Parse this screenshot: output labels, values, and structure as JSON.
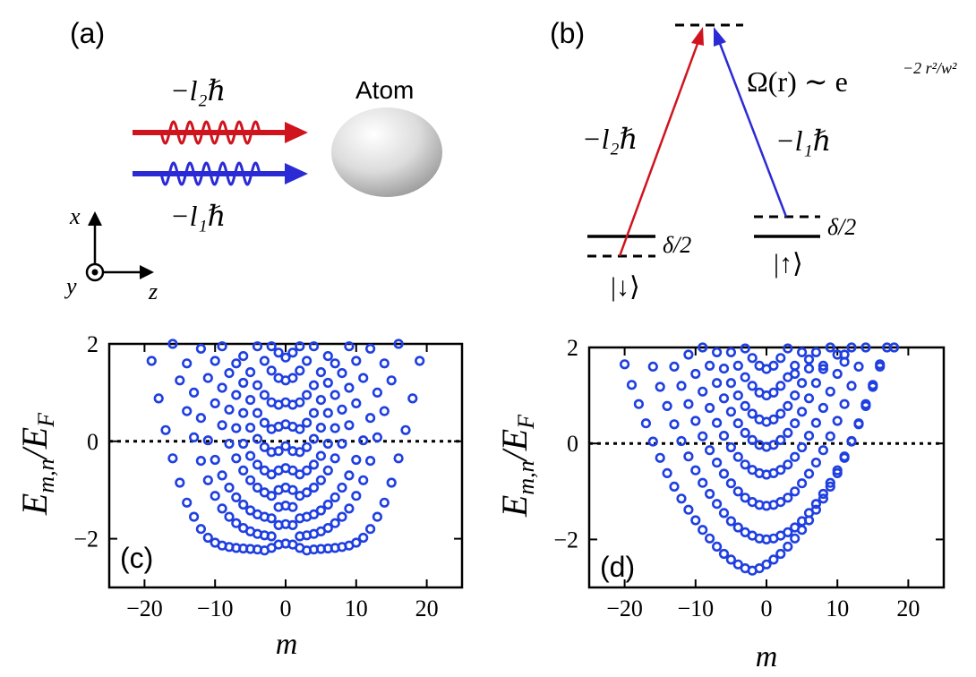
{
  "panel_a": {
    "label": "(a)",
    "atom_label": "Atom",
    "beam_top_label": "−l₂ℏ",
    "beam_bottom_label": "−l₁ℏ",
    "beam_top_color": "#d0141e",
    "beam_bottom_color": "#2b2bd6",
    "axes": {
      "x": "x",
      "y": "y",
      "z": "z"
    }
  },
  "panel_b": {
    "label": "(b)",
    "rabi_label": "Ω(r) ∼ e",
    "rabi_exponent": "−2 r²/w²",
    "left_arrow_label": "−l₂ℏ",
    "right_arrow_label": "−l₁ℏ",
    "left_detuning": "δ/2",
    "right_detuning": "δ/2",
    "state_down": "|↓⟩",
    "state_up": "|↑⟩",
    "left_arrow_color": "#d0141e",
    "right_arrow_color": "#2b2bd6"
  },
  "chart_data": [
    {
      "type": "scatter",
      "panel_label": "(c)",
      "xlabel": "m",
      "ylabel": "E_{m,n}/E_F",
      "xlim": [
        -25,
        25
      ],
      "ylim": [
        -3,
        2
      ],
      "xticks": [
        -20,
        -10,
        0,
        10,
        20
      ],
      "yticks": [
        -2,
        0,
        2
      ],
      "xtick_labels": [
        "−20",
        "−10",
        "0",
        "10",
        "20"
      ],
      "ytick_labels": [
        "−2",
        "0",
        "2"
      ],
      "fermi_level": 0,
      "marker_color": "#1f3fe0",
      "rows": [
        {
          "xs": [
            -19,
            -18,
            -17,
            -16,
            -15,
            -14,
            -13,
            -12,
            -11,
            -10,
            -9,
            -8,
            -7,
            -6,
            -5,
            -4,
            -3,
            -2,
            -1,
            0,
            1,
            2,
            3,
            4,
            5,
            6,
            7,
            8,
            9,
            10,
            11,
            12,
            13,
            14,
            15,
            16,
            17,
            18,
            19
          ],
          "ys": [
            1.65,
            0.88,
            0.23,
            -0.35,
            -0.85,
            -1.26,
            -1.55,
            -1.8,
            -1.98,
            -2.08,
            -2.14,
            -2.17,
            -2.19,
            -2.2,
            -2.21,
            -2.22,
            -2.24,
            -2.19,
            -2.12,
            -2.1,
            -2.12,
            -2.19,
            -2.24,
            -2.22,
            -2.21,
            -2.2,
            -2.19,
            -2.17,
            -2.14,
            -2.08,
            -1.98,
            -1.8,
            -1.55,
            -1.26,
            -0.85,
            -0.35,
            0.23,
            0.88,
            1.65
          ]
        },
        {
          "xs": [
            -16,
            -15,
            -14,
            -13,
            -12,
            -11,
            -10,
            -9,
            -8,
            -7,
            -6,
            -5,
            -4,
            -3,
            -2,
            -1,
            0,
            1,
            2,
            3,
            4,
            5,
            6,
            7,
            8,
            9,
            10,
            11,
            12,
            13,
            14,
            15,
            16
          ],
          "ys": [
            2.0,
            1.25,
            0.62,
            0.08,
            -0.4,
            -0.8,
            -1.12,
            -1.38,
            -1.55,
            -1.68,
            -1.78,
            -1.85,
            -1.9,
            -1.93,
            -1.95,
            -1.72,
            -1.7,
            -1.72,
            -1.95,
            -1.93,
            -1.9,
            -1.85,
            -1.78,
            -1.68,
            -1.55,
            -1.38,
            -1.12,
            -0.8,
            -0.4,
            0.08,
            0.62,
            1.25,
            2.0
          ]
        },
        {
          "xs": [
            -14,
            -13,
            -12,
            -11,
            -10,
            -9,
            -8,
            -7,
            -6,
            -5,
            -4,
            -3,
            -2,
            -1,
            0,
            1,
            2,
            3,
            4,
            5,
            6,
            7,
            8,
            9,
            10,
            11,
            12,
            13,
            14
          ],
          "ys": [
            1.6,
            1.0,
            0.48,
            0.02,
            -0.38,
            -0.7,
            -0.95,
            -1.15,
            -1.3,
            -1.42,
            -1.5,
            -1.55,
            -1.58,
            -1.35,
            -1.32,
            -1.35,
            -1.58,
            -1.55,
            -1.5,
            -1.42,
            -1.3,
            -1.15,
            -0.95,
            -0.7,
            -0.38,
            0.02,
            0.48,
            1.0,
            1.6
          ]
        },
        {
          "xs": [
            -12,
            -11,
            -10,
            -9,
            -8,
            -7,
            -6,
            -5,
            -4,
            -3,
            -2,
            -1,
            0,
            1,
            2,
            3,
            4,
            5,
            6,
            7,
            8,
            9,
            10,
            11,
            12
          ],
          "ys": [
            1.9,
            1.3,
            0.78,
            0.33,
            -0.05,
            -0.35,
            -0.6,
            -0.8,
            -0.95,
            -1.05,
            -1.12,
            -1.0,
            -0.95,
            -1.0,
            -1.12,
            -1.05,
            -0.95,
            -0.8,
            -0.6,
            -0.35,
            -0.05,
            0.33,
            0.78,
            1.3,
            1.9
          ]
        },
        {
          "xs": [
            -10,
            -9,
            -8,
            -7,
            -6,
            -5,
            -4,
            -3,
            -2,
            -1,
            0,
            1,
            2,
            3,
            4,
            5,
            6,
            7,
            8,
            9,
            10
          ],
          "ys": [
            1.65,
            1.1,
            0.65,
            0.27,
            -0.05,
            -0.3,
            -0.48,
            -0.6,
            -0.68,
            -0.6,
            -0.55,
            -0.6,
            -0.68,
            -0.6,
            -0.48,
            -0.3,
            -0.05,
            0.27,
            0.65,
            1.1,
            1.65
          ]
        },
        {
          "xs": [
            -9,
            -8,
            -7,
            -6,
            -5,
            -4,
            -3,
            -2,
            -1,
            0,
            1,
            2,
            3,
            4,
            5,
            6,
            7,
            8,
            9
          ],
          "ys": [
            1.95,
            1.4,
            0.95,
            0.58,
            0.28,
            0.05,
            -0.12,
            -0.22,
            -0.2,
            -0.1,
            -0.2,
            -0.22,
            -0.12,
            0.05,
            0.28,
            0.58,
            0.95,
            1.4,
            1.95
          ]
        },
        {
          "xs": [
            -7,
            -6,
            -5,
            -4,
            -3,
            -2,
            -1,
            0,
            1,
            2,
            3,
            4,
            5,
            6,
            7
          ],
          "ys": [
            1.6,
            1.2,
            0.85,
            0.58,
            0.38,
            0.25,
            0.3,
            0.35,
            0.3,
            0.25,
            0.38,
            0.58,
            0.85,
            1.2,
            1.6
          ]
        },
        {
          "xs": [
            -6,
            -5,
            -4,
            -3,
            -2,
            -1,
            0,
            1,
            2,
            3,
            4,
            5,
            6
          ],
          "ys": [
            1.75,
            1.42,
            1.15,
            0.95,
            0.8,
            0.75,
            0.8,
            0.75,
            0.8,
            0.95,
            1.15,
            1.42,
            1.75
          ]
        },
        {
          "xs": [
            -4,
            -3,
            -2,
            -1,
            0,
            1,
            2,
            3,
            4
          ],
          "ys": [
            1.95,
            1.65,
            1.45,
            1.3,
            1.25,
            1.3,
            1.45,
            1.65,
            1.95
          ]
        },
        {
          "xs": [
            -2,
            -1,
            0,
            1,
            2
          ],
          "ys": [
            1.95,
            1.82,
            1.72,
            1.82,
            1.95
          ]
        }
      ]
    },
    {
      "type": "scatter",
      "panel_label": "(d)",
      "xlabel": "m",
      "ylabel": "E_{m,n}/E_F",
      "xlim": [
        -25,
        25
      ],
      "ylim": [
        -3,
        2
      ],
      "xticks": [
        -20,
        -10,
        0,
        10,
        20
      ],
      "yticks": [
        -2,
        0,
        2
      ],
      "xtick_labels": [
        "−20",
        "−10",
        "0",
        "10",
        "20"
      ],
      "ytick_labels": [
        "−2",
        "0",
        "2"
      ],
      "fermi_level": 0,
      "marker_color": "#1f3fe0",
      "rows": [
        {
          "xs": [
            -20,
            -19,
            -18,
            -17,
            -16,
            -15,
            -14,
            -13,
            -12,
            -11,
            -10,
            -9,
            -8,
            -7,
            -6,
            -5,
            -4,
            -3,
            -2,
            -1,
            0,
            1,
            2,
            3,
            4,
            5,
            6,
            7,
            8,
            9,
            10,
            11,
            12,
            13,
            14,
            15,
            16,
            17,
            18
          ],
          "ys": [
            1.65,
            1.22,
            0.82,
            0.42,
            0.04,
            -0.3,
            -0.62,
            -0.9,
            -1.15,
            -1.38,
            -1.6,
            -1.8,
            -1.98,
            -2.15,
            -2.3,
            -2.42,
            -2.52,
            -2.6,
            -2.65,
            -2.6,
            -2.52,
            -2.42,
            -2.3,
            -2.15,
            -1.98,
            -1.8,
            -1.6,
            -1.38,
            -1.15,
            -0.9,
            -0.62,
            -0.3,
            0.04,
            0.42,
            0.82,
            1.22,
            1.65,
            2.0,
            2.0
          ]
        },
        {
          "xs": [
            -16,
            -15,
            -14,
            -13,
            -12,
            -11,
            -10,
            -9,
            -8,
            -7,
            -6,
            -5,
            -4,
            -3,
            -2,
            -1,
            0,
            1,
            2,
            3,
            4,
            5,
            6,
            7,
            8,
            9,
            10,
            11,
            12,
            13,
            14,
            15,
            16
          ],
          "ys": [
            1.6,
            1.18,
            0.78,
            0.4,
            0.05,
            -0.27,
            -0.56,
            -0.82,
            -1.05,
            -1.26,
            -1.45,
            -1.62,
            -1.75,
            -1.85,
            -1.92,
            -1.98,
            -2.0,
            -1.98,
            -1.92,
            -1.85,
            -1.75,
            -1.62,
            -1.45,
            -1.26,
            -1.05,
            -0.82,
            -0.56,
            -0.27,
            0.05,
            0.4,
            0.78,
            1.18,
            1.6
          ]
        },
        {
          "xs": [
            -13,
            -12,
            -11,
            -10,
            -9,
            -8,
            -7,
            -6,
            -5,
            -4,
            -3,
            -2,
            -1,
            0,
            1,
            2,
            3,
            4,
            5,
            6,
            7,
            8,
            9,
            10,
            11,
            12,
            13,
            14
          ],
          "ys": [
            1.6,
            1.2,
            0.82,
            0.47,
            0.15,
            -0.14,
            -0.4,
            -0.63,
            -0.83,
            -1.0,
            -1.13,
            -1.22,
            -1.28,
            -1.3,
            -1.28,
            -1.22,
            -1.13,
            -1.0,
            -0.83,
            -0.63,
            -0.4,
            -0.14,
            0.15,
            0.47,
            0.82,
            1.2,
            1.6,
            2.0
          ]
        },
        {
          "xs": [
            -11,
            -10,
            -9,
            -8,
            -7,
            -6,
            -5,
            -4,
            -3,
            -2,
            -1,
            0,
            1,
            2,
            3,
            4,
            5,
            6,
            7,
            8,
            9,
            10,
            11,
            12
          ],
          "ys": [
            1.85,
            1.45,
            1.08,
            0.74,
            0.43,
            0.16,
            -0.08,
            -0.28,
            -0.44,
            -0.55,
            -0.62,
            -0.65,
            -0.62,
            -0.55,
            -0.44,
            -0.28,
            -0.08,
            0.16,
            0.43,
            0.74,
            1.08,
            1.45,
            1.85,
            2.0
          ]
        },
        {
          "xs": [
            -9,
            -8,
            -7,
            -6,
            -5,
            -4,
            -3,
            -2,
            -1,
            0,
            1,
            2,
            3,
            4,
            5,
            6,
            7,
            8,
            9,
            10,
            11
          ],
          "ys": [
            2.0,
            1.62,
            1.26,
            0.94,
            0.66,
            0.42,
            0.22,
            0.07,
            -0.03,
            -0.07,
            -0.03,
            0.07,
            0.22,
            0.42,
            0.66,
            0.94,
            1.26,
            1.62,
            2.0,
            1.85,
            1.7
          ]
        },
        {
          "xs": [
            -7,
            -6,
            -5,
            -4,
            -3,
            -2,
            -1,
            0,
            1,
            2,
            3,
            4,
            5,
            6,
            7,
            8
          ],
          "ys": [
            1.9,
            1.56,
            1.26,
            1.0,
            0.78,
            0.62,
            0.5,
            0.45,
            0.5,
            0.62,
            0.78,
            1.0,
            1.26,
            1.56,
            1.9,
            1.55
          ]
        },
        {
          "xs": [
            -5,
            -4,
            -3,
            -2,
            -1,
            0,
            1,
            2,
            3,
            4,
            5,
            6
          ],
          "ys": [
            1.9,
            1.62,
            1.38,
            1.2,
            1.06,
            1.0,
            1.06,
            1.2,
            1.38,
            1.62,
            1.9,
            1.75
          ]
        },
        {
          "xs": [
            -3,
            -2,
            -1,
            0,
            1,
            2,
            3,
            4
          ],
          "ys": [
            1.98,
            1.78,
            1.62,
            1.55,
            1.62,
            1.78,
            1.98,
            1.45
          ]
        }
      ]
    }
  ]
}
